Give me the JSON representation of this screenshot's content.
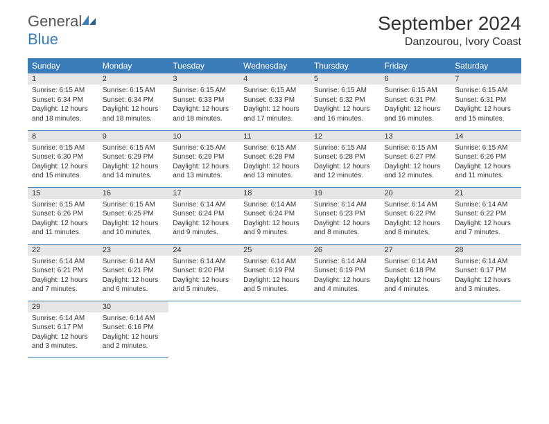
{
  "brand": {
    "general": "General",
    "blue": "Blue"
  },
  "title": {
    "month": "September 2024",
    "location": "Danzourou, Ivory Coast"
  },
  "colors": {
    "header_bg": "#3a7db8",
    "daynum_bg": "#e6e6e6",
    "border": "#3a7db8",
    "text": "#333333",
    "logo_gray": "#555555",
    "logo_blue": "#3a7db8",
    "background": "#ffffff"
  },
  "fonts": {
    "title_size": 28,
    "location_size": 16,
    "th_size": 12,
    "cell_size": 10
  },
  "weekdays": [
    "Sunday",
    "Monday",
    "Tuesday",
    "Wednesday",
    "Thursday",
    "Friday",
    "Saturday"
  ],
  "weeks": [
    [
      {
        "n": "1",
        "sunrise": "6:15 AM",
        "sunset": "6:34 PM",
        "dl": "12 hours and 18 minutes."
      },
      {
        "n": "2",
        "sunrise": "6:15 AM",
        "sunset": "6:34 PM",
        "dl": "12 hours and 18 minutes."
      },
      {
        "n": "3",
        "sunrise": "6:15 AM",
        "sunset": "6:33 PM",
        "dl": "12 hours and 18 minutes."
      },
      {
        "n": "4",
        "sunrise": "6:15 AM",
        "sunset": "6:33 PM",
        "dl": "12 hours and 17 minutes."
      },
      {
        "n": "5",
        "sunrise": "6:15 AM",
        "sunset": "6:32 PM",
        "dl": "12 hours and 16 minutes."
      },
      {
        "n": "6",
        "sunrise": "6:15 AM",
        "sunset": "6:31 PM",
        "dl": "12 hours and 16 minutes."
      },
      {
        "n": "7",
        "sunrise": "6:15 AM",
        "sunset": "6:31 PM",
        "dl": "12 hours and 15 minutes."
      }
    ],
    [
      {
        "n": "8",
        "sunrise": "6:15 AM",
        "sunset": "6:30 PM",
        "dl": "12 hours and 15 minutes."
      },
      {
        "n": "9",
        "sunrise": "6:15 AM",
        "sunset": "6:29 PM",
        "dl": "12 hours and 14 minutes."
      },
      {
        "n": "10",
        "sunrise": "6:15 AM",
        "sunset": "6:29 PM",
        "dl": "12 hours and 13 minutes."
      },
      {
        "n": "11",
        "sunrise": "6:15 AM",
        "sunset": "6:28 PM",
        "dl": "12 hours and 13 minutes."
      },
      {
        "n": "12",
        "sunrise": "6:15 AM",
        "sunset": "6:28 PM",
        "dl": "12 hours and 12 minutes."
      },
      {
        "n": "13",
        "sunrise": "6:15 AM",
        "sunset": "6:27 PM",
        "dl": "12 hours and 12 minutes."
      },
      {
        "n": "14",
        "sunrise": "6:15 AM",
        "sunset": "6:26 PM",
        "dl": "12 hours and 11 minutes."
      }
    ],
    [
      {
        "n": "15",
        "sunrise": "6:15 AM",
        "sunset": "6:26 PM",
        "dl": "12 hours and 11 minutes."
      },
      {
        "n": "16",
        "sunrise": "6:15 AM",
        "sunset": "6:25 PM",
        "dl": "12 hours and 10 minutes."
      },
      {
        "n": "17",
        "sunrise": "6:14 AM",
        "sunset": "6:24 PM",
        "dl": "12 hours and 9 minutes."
      },
      {
        "n": "18",
        "sunrise": "6:14 AM",
        "sunset": "6:24 PM",
        "dl": "12 hours and 9 minutes."
      },
      {
        "n": "19",
        "sunrise": "6:14 AM",
        "sunset": "6:23 PM",
        "dl": "12 hours and 8 minutes."
      },
      {
        "n": "20",
        "sunrise": "6:14 AM",
        "sunset": "6:22 PM",
        "dl": "12 hours and 8 minutes."
      },
      {
        "n": "21",
        "sunrise": "6:14 AM",
        "sunset": "6:22 PM",
        "dl": "12 hours and 7 minutes."
      }
    ],
    [
      {
        "n": "22",
        "sunrise": "6:14 AM",
        "sunset": "6:21 PM",
        "dl": "12 hours and 7 minutes."
      },
      {
        "n": "23",
        "sunrise": "6:14 AM",
        "sunset": "6:21 PM",
        "dl": "12 hours and 6 minutes."
      },
      {
        "n": "24",
        "sunrise": "6:14 AM",
        "sunset": "6:20 PM",
        "dl": "12 hours and 5 minutes."
      },
      {
        "n": "25",
        "sunrise": "6:14 AM",
        "sunset": "6:19 PM",
        "dl": "12 hours and 5 minutes."
      },
      {
        "n": "26",
        "sunrise": "6:14 AM",
        "sunset": "6:19 PM",
        "dl": "12 hours and 4 minutes."
      },
      {
        "n": "27",
        "sunrise": "6:14 AM",
        "sunset": "6:18 PM",
        "dl": "12 hours and 4 minutes."
      },
      {
        "n": "28",
        "sunrise": "6:14 AM",
        "sunset": "6:17 PM",
        "dl": "12 hours and 3 minutes."
      }
    ],
    [
      {
        "n": "29",
        "sunrise": "6:14 AM",
        "sunset": "6:17 PM",
        "dl": "12 hours and 3 minutes."
      },
      {
        "n": "30",
        "sunrise": "6:14 AM",
        "sunset": "6:16 PM",
        "dl": "12 hours and 2 minutes."
      },
      null,
      null,
      null,
      null,
      null
    ]
  ],
  "labels": {
    "sunrise": "Sunrise:",
    "sunset": "Sunset:",
    "daylight": "Daylight:"
  }
}
